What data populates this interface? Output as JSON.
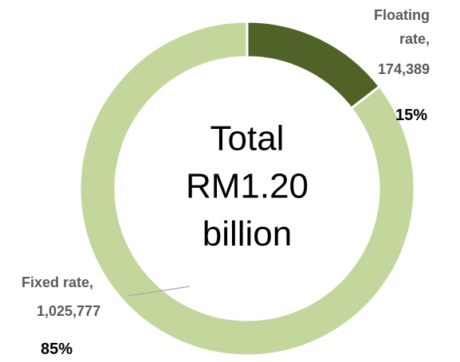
{
  "chart_data": {
    "type": "donut",
    "categories": [
      "Floating rate,",
      "Fixed rate,"
    ],
    "values": [
      174389,
      1025777
    ],
    "value_labels": [
      "174,389",
      "1,025,777"
    ],
    "percent_labels": [
      "15%",
      "85%"
    ],
    "colors": [
      "#4f6228",
      "#c3d69b"
    ],
    "center_label": [
      "Total",
      "RM1.20",
      "billion"
    ]
  }
}
